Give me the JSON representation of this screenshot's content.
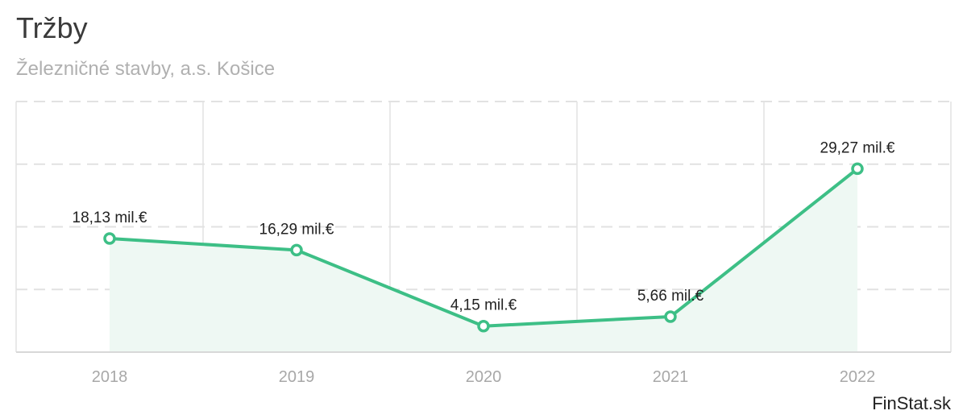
{
  "header": {
    "title": "Tržby",
    "subtitle": "Železničné stavby, a.s. Košice"
  },
  "footer": {
    "source": "FinStat.sk"
  },
  "colors": {
    "line": "#3dbf86",
    "area": "#eef8f3",
    "grid": "#e2e2e2"
  },
  "chart_data": {
    "type": "area",
    "title": "Tržby",
    "subtitle": "Železničné stavby, a.s. Košice",
    "unit": "mil.€",
    "x": [
      "2018",
      "2019",
      "2020",
      "2021",
      "2022"
    ],
    "values": [
      18.13,
      16.29,
      4.15,
      5.66,
      29.27
    ],
    "data_labels": [
      "18,13 mil.€",
      "16,29 mil.€",
      "4,15 mil.€",
      "5,66 mil.€",
      "29,27 mil.€"
    ],
    "ylim": [
      0,
      40
    ],
    "grid": true,
    "legend": "none"
  }
}
